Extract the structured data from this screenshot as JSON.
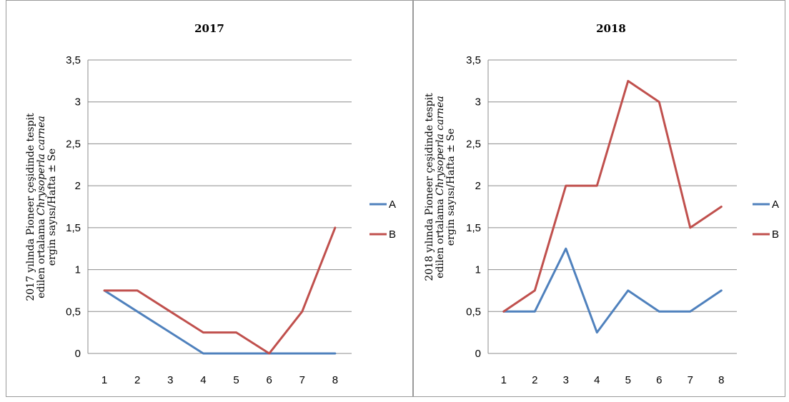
{
  "chart_data": [
    {
      "type": "line",
      "title": "2017",
      "ylabel": {
        "line1": "2017 yılında Pioneer çeşidinde tespit",
        "line2_prefix": "edilen ortalama ",
        "line2_species": "Chrysoperla carnea",
        "line3": "ergin sayısı/Hafta ± Se"
      },
      "categories": [
        "1",
        "2",
        "3",
        "4",
        "5",
        "6",
        "7",
        "8"
      ],
      "ylim": [
        0,
        3.5
      ],
      "yticks": [
        "0",
        "0,5",
        "1",
        "1,5",
        "2",
        "2,5",
        "3",
        "3,5"
      ],
      "grid": true,
      "legend": "right",
      "series": [
        {
          "name": "A",
          "color": "#4f81bd",
          "values": [
            0.75,
            0.5,
            0.25,
            0,
            0,
            0,
            0,
            0
          ]
        },
        {
          "name": "B",
          "color": "#c0504d",
          "values": [
            0.75,
            0.75,
            0.5,
            0.25,
            0.25,
            0,
            0.5,
            1.5
          ]
        }
      ]
    },
    {
      "type": "line",
      "title": "2018",
      "ylabel": {
        "line1": "2018 yılında Pioneer çeşidinde tespit",
        "line2_prefix": "edilen ortalama ",
        "line2_species": "Chrysoperla carnea",
        "line3": "ergin sayısı/Hafta ± Se"
      },
      "categories": [
        "1",
        "2",
        "3",
        "4",
        "5",
        "6",
        "7",
        "8"
      ],
      "ylim": [
        0,
        3.5
      ],
      "yticks": [
        "0",
        "0,5",
        "1",
        "1,5",
        "2",
        "2,5",
        "3",
        "3,5"
      ],
      "grid": true,
      "legend": "right",
      "series": [
        {
          "name": "A",
          "color": "#4f81bd",
          "values": [
            0.5,
            0.5,
            1.25,
            0.25,
            0.75,
            0.5,
            0.5,
            0.75
          ]
        },
        {
          "name": "B",
          "color": "#c0504d",
          "values": [
            0.5,
            0.75,
            2,
            2,
            3.25,
            3,
            1.5,
            1.75
          ]
        }
      ]
    }
  ]
}
